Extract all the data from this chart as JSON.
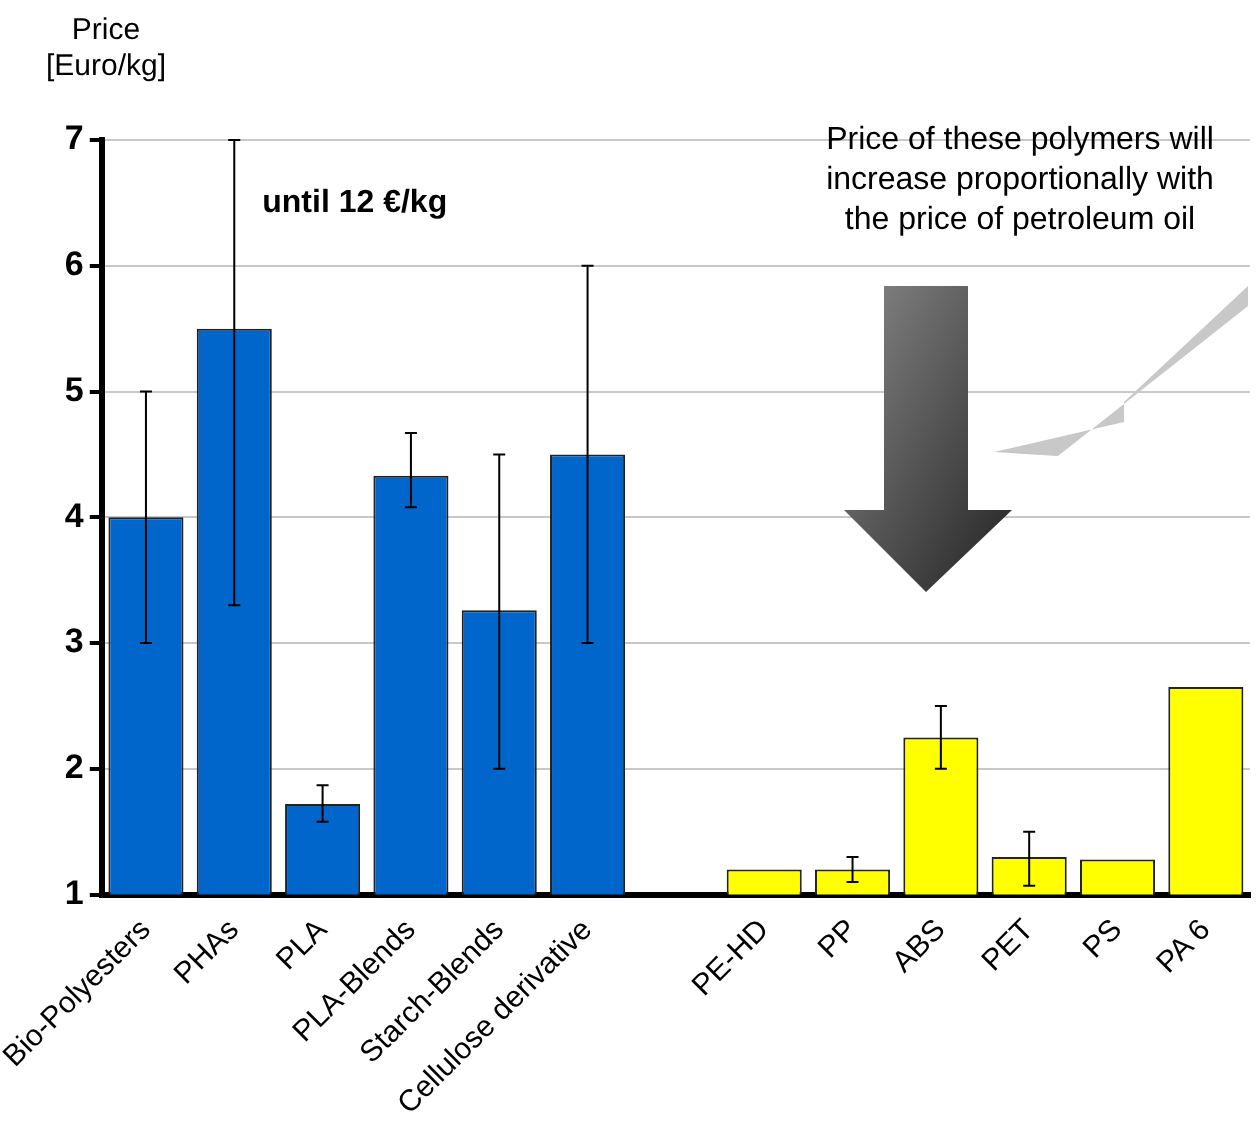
{
  "chart_data": {
    "type": "bar",
    "ylabel": "Price\n[Euro/kg]",
    "categories": [
      "Bio-Polyesters",
      "PHAs",
      "PLA",
      "PLA-Blends",
      "Starch-Blends",
      "Cellulose derivative",
      null,
      "PE-HD",
      "PP",
      "ABS",
      "PET",
      "PS",
      "PA 6"
    ],
    "values": [
      4,
      5.5,
      1.72,
      4.33,
      3.26,
      4.5,
      null,
      1.2,
      1.2,
      2.25,
      1.3,
      1.28,
      2.65
    ],
    "colors": [
      "#0066cc",
      "#0066cc",
      "#0066cc",
      "#0066cc",
      "#0066cc",
      "#0066cc",
      "#0066cc",
      "#ffff00",
      "#ffff00",
      "#ffff00",
      "#ffff00",
      "#ffff00",
      "#ffff00"
    ],
    "errors": [
      [
        3,
        5
      ],
      [
        3.3,
        7
      ],
      [
        1.58,
        1.87
      ],
      [
        4.08,
        4.67
      ],
      [
        2,
        4.5
      ],
      [
        3,
        6
      ],
      null,
      null,
      [
        1.1,
        1.3
      ],
      [
        2,
        2.5
      ],
      [
        1.07,
        1.5
      ],
      null,
      null
    ],
    "ylim": [
      1,
      7
    ],
    "yticks": [
      1,
      2,
      3,
      4,
      5,
      6,
      7
    ],
    "grid": "y",
    "annotations": [
      {
        "text": "until 12 €/kg",
        "x": "PHAs",
        "y": 6.5
      },
      "Price of these polymers will\nincrease proportionally with\nthe price of petroleum oil"
    ]
  }
}
